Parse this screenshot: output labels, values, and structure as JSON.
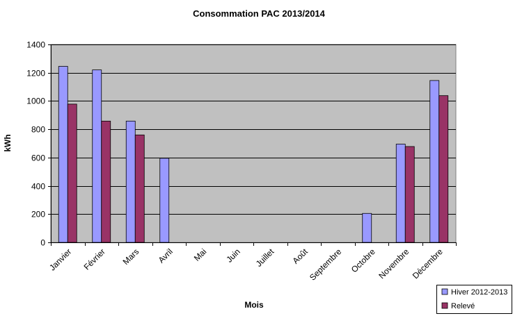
{
  "chart_data": {
    "type": "bar",
    "title": "Consommation PAC 2013/2014",
    "xlabel": "Mois",
    "ylabel": "kWh",
    "ylim": [
      0,
      1400
    ],
    "yticks": [
      0,
      200,
      400,
      600,
      800,
      1000,
      1200,
      1400
    ],
    "categories": [
      "Janvier",
      "Février",
      "Mars",
      "Avril",
      "Mai",
      "Juin",
      "Juillet",
      "Août",
      "Septembre",
      "Octobre",
      "Novembre",
      "Décembre"
    ],
    "series": [
      {
        "name": "Hiver 2012-2013",
        "color": "#9999ff",
        "values": [
          1245,
          1220,
          858,
          595,
          null,
          null,
          null,
          null,
          null,
          205,
          695,
          1145
        ]
      },
      {
        "name": "Relevé",
        "color": "#993366",
        "values": [
          978,
          858,
          760,
          null,
          null,
          null,
          null,
          null,
          null,
          null,
          678,
          1038
        ]
      }
    ],
    "grid": true,
    "legend": "bottom-right",
    "plot_background": "#c0c0c0"
  }
}
